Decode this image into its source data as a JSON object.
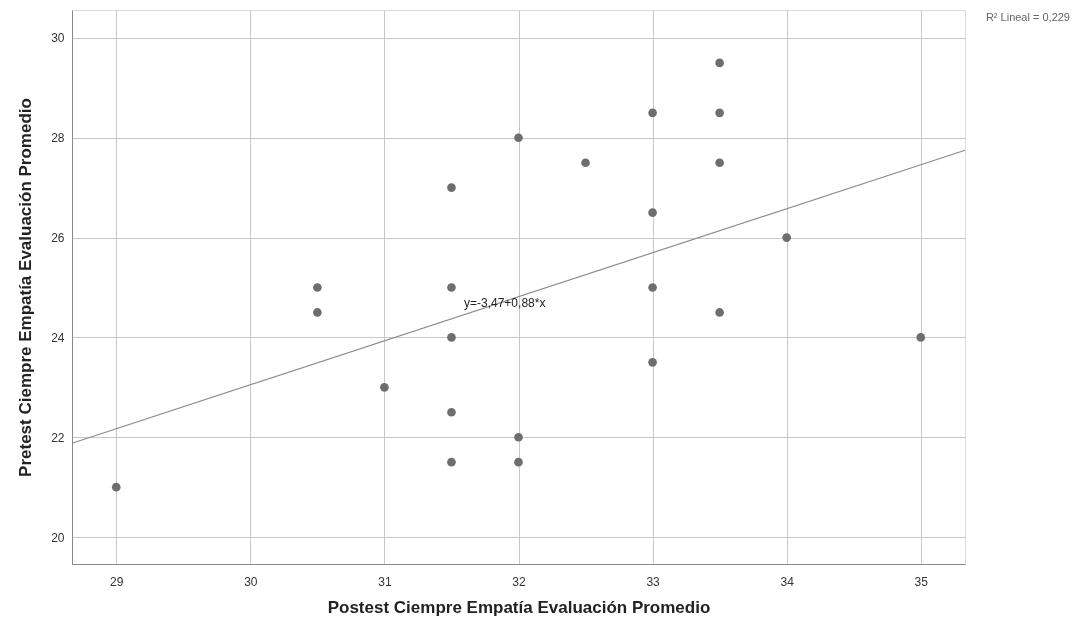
{
  "chart_data": {
    "type": "scatter",
    "xlabel": "Postest Ciempre Empatía Evaluación Promedio",
    "ylabel": "Pretest Ciempre Empatía Evaluación Promedio",
    "xlim": [
      28.67,
      35.33
    ],
    "xticks": [
      29,
      30,
      31,
      32,
      33,
      34,
      35
    ],
    "ylim": [
      19.46,
      30.56
    ],
    "yticks": [
      20,
      22,
      24,
      26,
      28,
      30
    ],
    "grid": true,
    "marker": "circle",
    "series": [
      {
        "color": "#6e6e6e",
        "x": [
          29,
          30.5,
          30.5,
          31,
          31.5,
          31.5,
          31.5,
          31.5,
          31.5,
          32,
          32,
          32,
          32.5,
          33,
          33,
          33,
          33,
          33.5,
          33.5,
          33.5,
          33.5,
          34,
          35
        ],
        "values": [
          21,
          25,
          24.5,
          23,
          27,
          25,
          24,
          22.5,
          21.5,
          28,
          22,
          21.5,
          27.5,
          28.5,
          26.5,
          25,
          23.5,
          29.5,
          28.5,
          27.5,
          24.5,
          26,
          24
        ]
      },
      {
        "type": "line",
        "marker": "none",
        "color": "#8c8c8c",
        "x": [
          28.67,
          35.33
        ],
        "values": [
          21.88,
          27.75
        ]
      }
    ],
    "annotations": [
      "y=-3,47+0,88*x",
      "R² Lineal = 0,229"
    ]
  }
}
